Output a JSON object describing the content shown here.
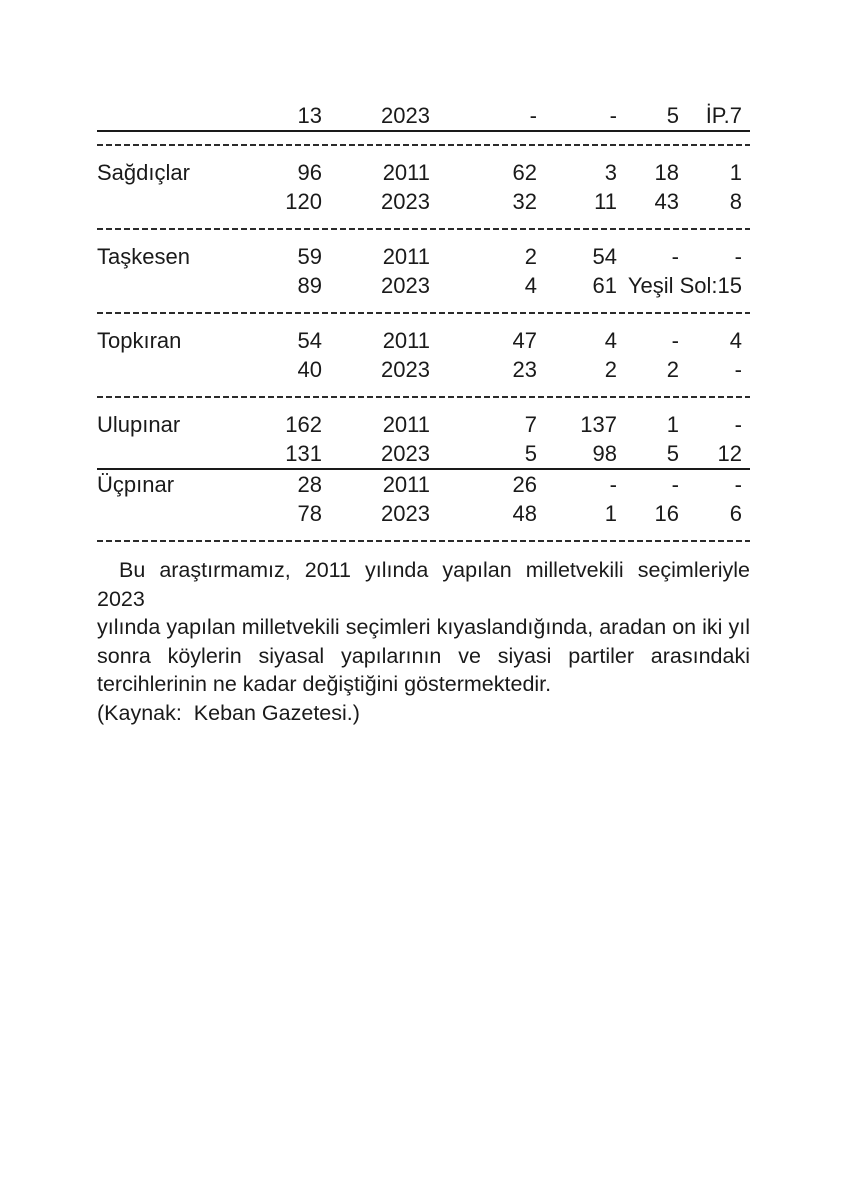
{
  "page": {
    "background": "#ffffff",
    "text_color": "#1a1a1a",
    "line_color": "#1a1a1a"
  },
  "table": {
    "description_visible": "continuation of election results table, header on previous page",
    "rows": [
      {
        "kind": "data",
        "cells": [
          "",
          "13",
          "2023",
          "-",
          "-",
          "5",
          "İP.7"
        ],
        "solid_border_bottom": true
      },
      {
        "kind": "separator",
        "style": "dashed"
      },
      {
        "kind": "data",
        "cells": [
          "Sağdıçlar",
          "96",
          "2011",
          "62",
          "3",
          "18",
          "1"
        ]
      },
      {
        "kind": "data",
        "cells": [
          "",
          "120",
          "2023",
          "32",
          "11",
          "43",
          "8"
        ]
      },
      {
        "kind": "separator",
        "style": "dashed"
      },
      {
        "kind": "data",
        "cells": [
          "Taşkesen",
          "59",
          "2011",
          "2",
          "54",
          "-",
          "-"
        ]
      },
      {
        "kind": "data",
        "cells": [
          "",
          "89",
          "2023",
          "4",
          "61",
          {
            "text": "Yeşil Sol:15",
            "colspan": 2
          }
        ]
      },
      {
        "kind": "separator",
        "style": "dashed"
      },
      {
        "kind": "data",
        "cells": [
          "Topkıran",
          "54",
          "2011",
          "47",
          "4",
          "-",
          "4"
        ]
      },
      {
        "kind": "data",
        "cells": [
          "",
          "40",
          "2023",
          "23",
          "2",
          "2",
          "-"
        ]
      },
      {
        "kind": "separator",
        "style": "dashed"
      },
      {
        "kind": "data",
        "cells": [
          "Ulupınar",
          "162",
          "2011",
          "7",
          "137",
          "1",
          "-"
        ]
      },
      {
        "kind": "data",
        "cells": [
          "",
          "131",
          "2023",
          "5",
          "98",
          "5",
          "12"
        ],
        "solid_border_bottom": true
      },
      {
        "kind": "data",
        "cells": [
          "Üçpınar",
          "28",
          "2011",
          "26",
          "-",
          "-",
          "-"
        ]
      },
      {
        "kind": "data",
        "cells": [
          "",
          "78",
          "2023",
          "48",
          "1",
          "16",
          "6"
        ]
      },
      {
        "kind": "separator",
        "style": "dashed"
      }
    ]
  },
  "body": {
    "lines": [
      "Bu araştırmamız, 2011 yılında yapılan milletvekili seçimleriyle 2023",
      "yılında yapılan milletvekili seçimleri kıyaslandığında, aradan on iki yıl",
      "sonra köylerin siyasal yapılarının ve siyasi partiler arasındaki",
      "tercihlerinin ne kadar değiştiğini göstermektedir."
    ],
    "paragraph": "Bu araştırmamız, 2011 yılında yapılan milletvekili seçimleriyle 2023 yılında yapılan milletvekili seçimleri kıyaslandığında, aradan on iki yıl sonra köylerin siyasal yapılarının ve siyasi partiler arasındaki tercihlerinin ne kadar değiştiğini göstermektedir.",
    "source_line": "(Kaynak:  Keban Gazetesi.)"
  }
}
